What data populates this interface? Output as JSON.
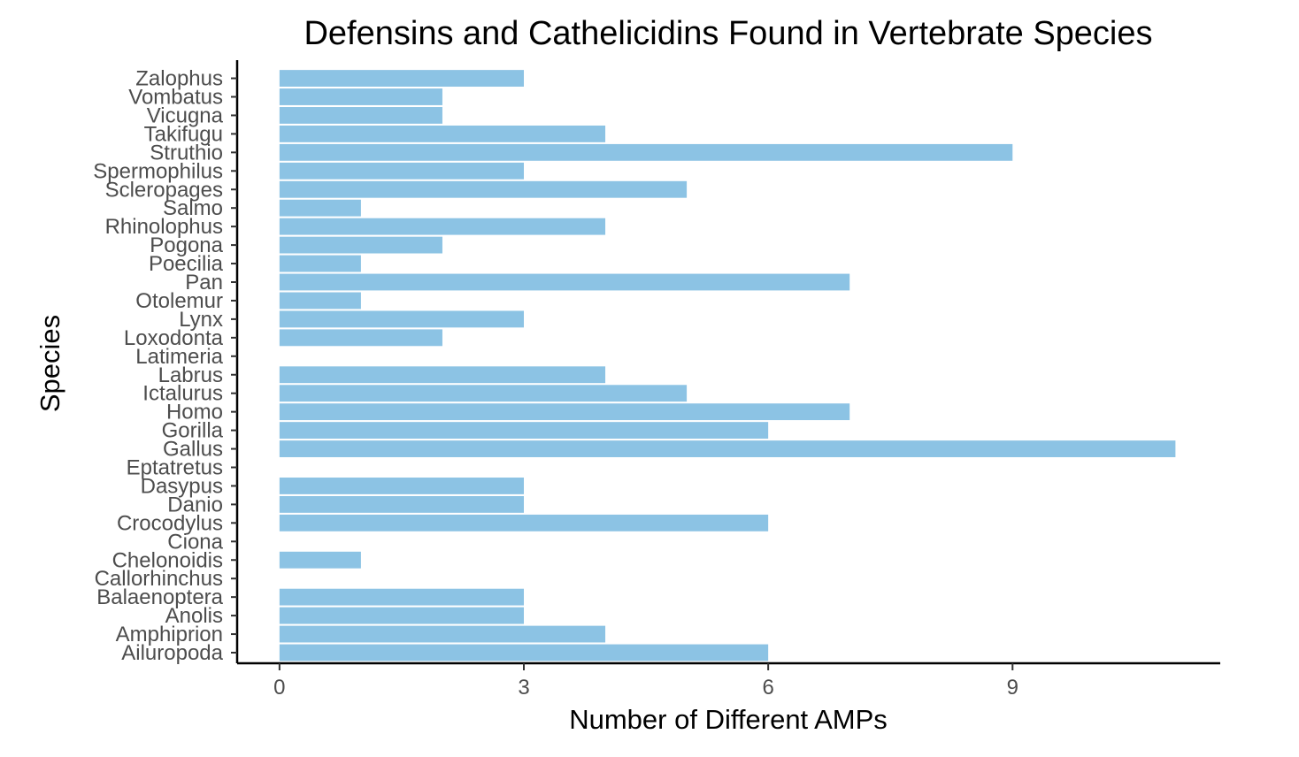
{
  "chart_data": {
    "type": "bar",
    "orientation": "horizontal",
    "title": "Defensins and Cathelicidins Found in Vertebrate Species",
    "xlabel": "Number of Different AMPs",
    "ylabel": "Species",
    "categories": [
      "Ailuropoda",
      "Amphiprion",
      "Anolis",
      "Balaenoptera",
      "Callorhinchus",
      "Chelonoidis",
      "Ciona",
      "Crocodylus",
      "Danio",
      "Dasypus",
      "Eptatretus",
      "Gallus",
      "Gorilla",
      "Homo",
      "Ictalurus",
      "Labrus",
      "Latimeria",
      "Loxodonta",
      "Lynx",
      "Otolemur",
      "Pan",
      "Poecilia",
      "Pogona",
      "Rhinolophus",
      "Salmo",
      "Scleropages",
      "Spermophilus",
      "Struthio",
      "Takifugu",
      "Vicugna",
      "Vombatus",
      "Zalophus"
    ],
    "values": [
      6,
      4,
      3,
      3,
      0,
      1,
      0,
      6,
      3,
      3,
      0,
      11,
      6,
      7,
      5,
      4,
      0,
      2,
      3,
      1,
      7,
      1,
      2,
      4,
      1,
      5,
      3,
      9,
      4,
      2,
      2,
      3
    ],
    "xlim": [
      -0.52,
      11.55
    ],
    "xticks": [
      0,
      3,
      6,
      9
    ],
    "grid": false,
    "legend": "none",
    "bar_color": "#8cc3e4"
  }
}
